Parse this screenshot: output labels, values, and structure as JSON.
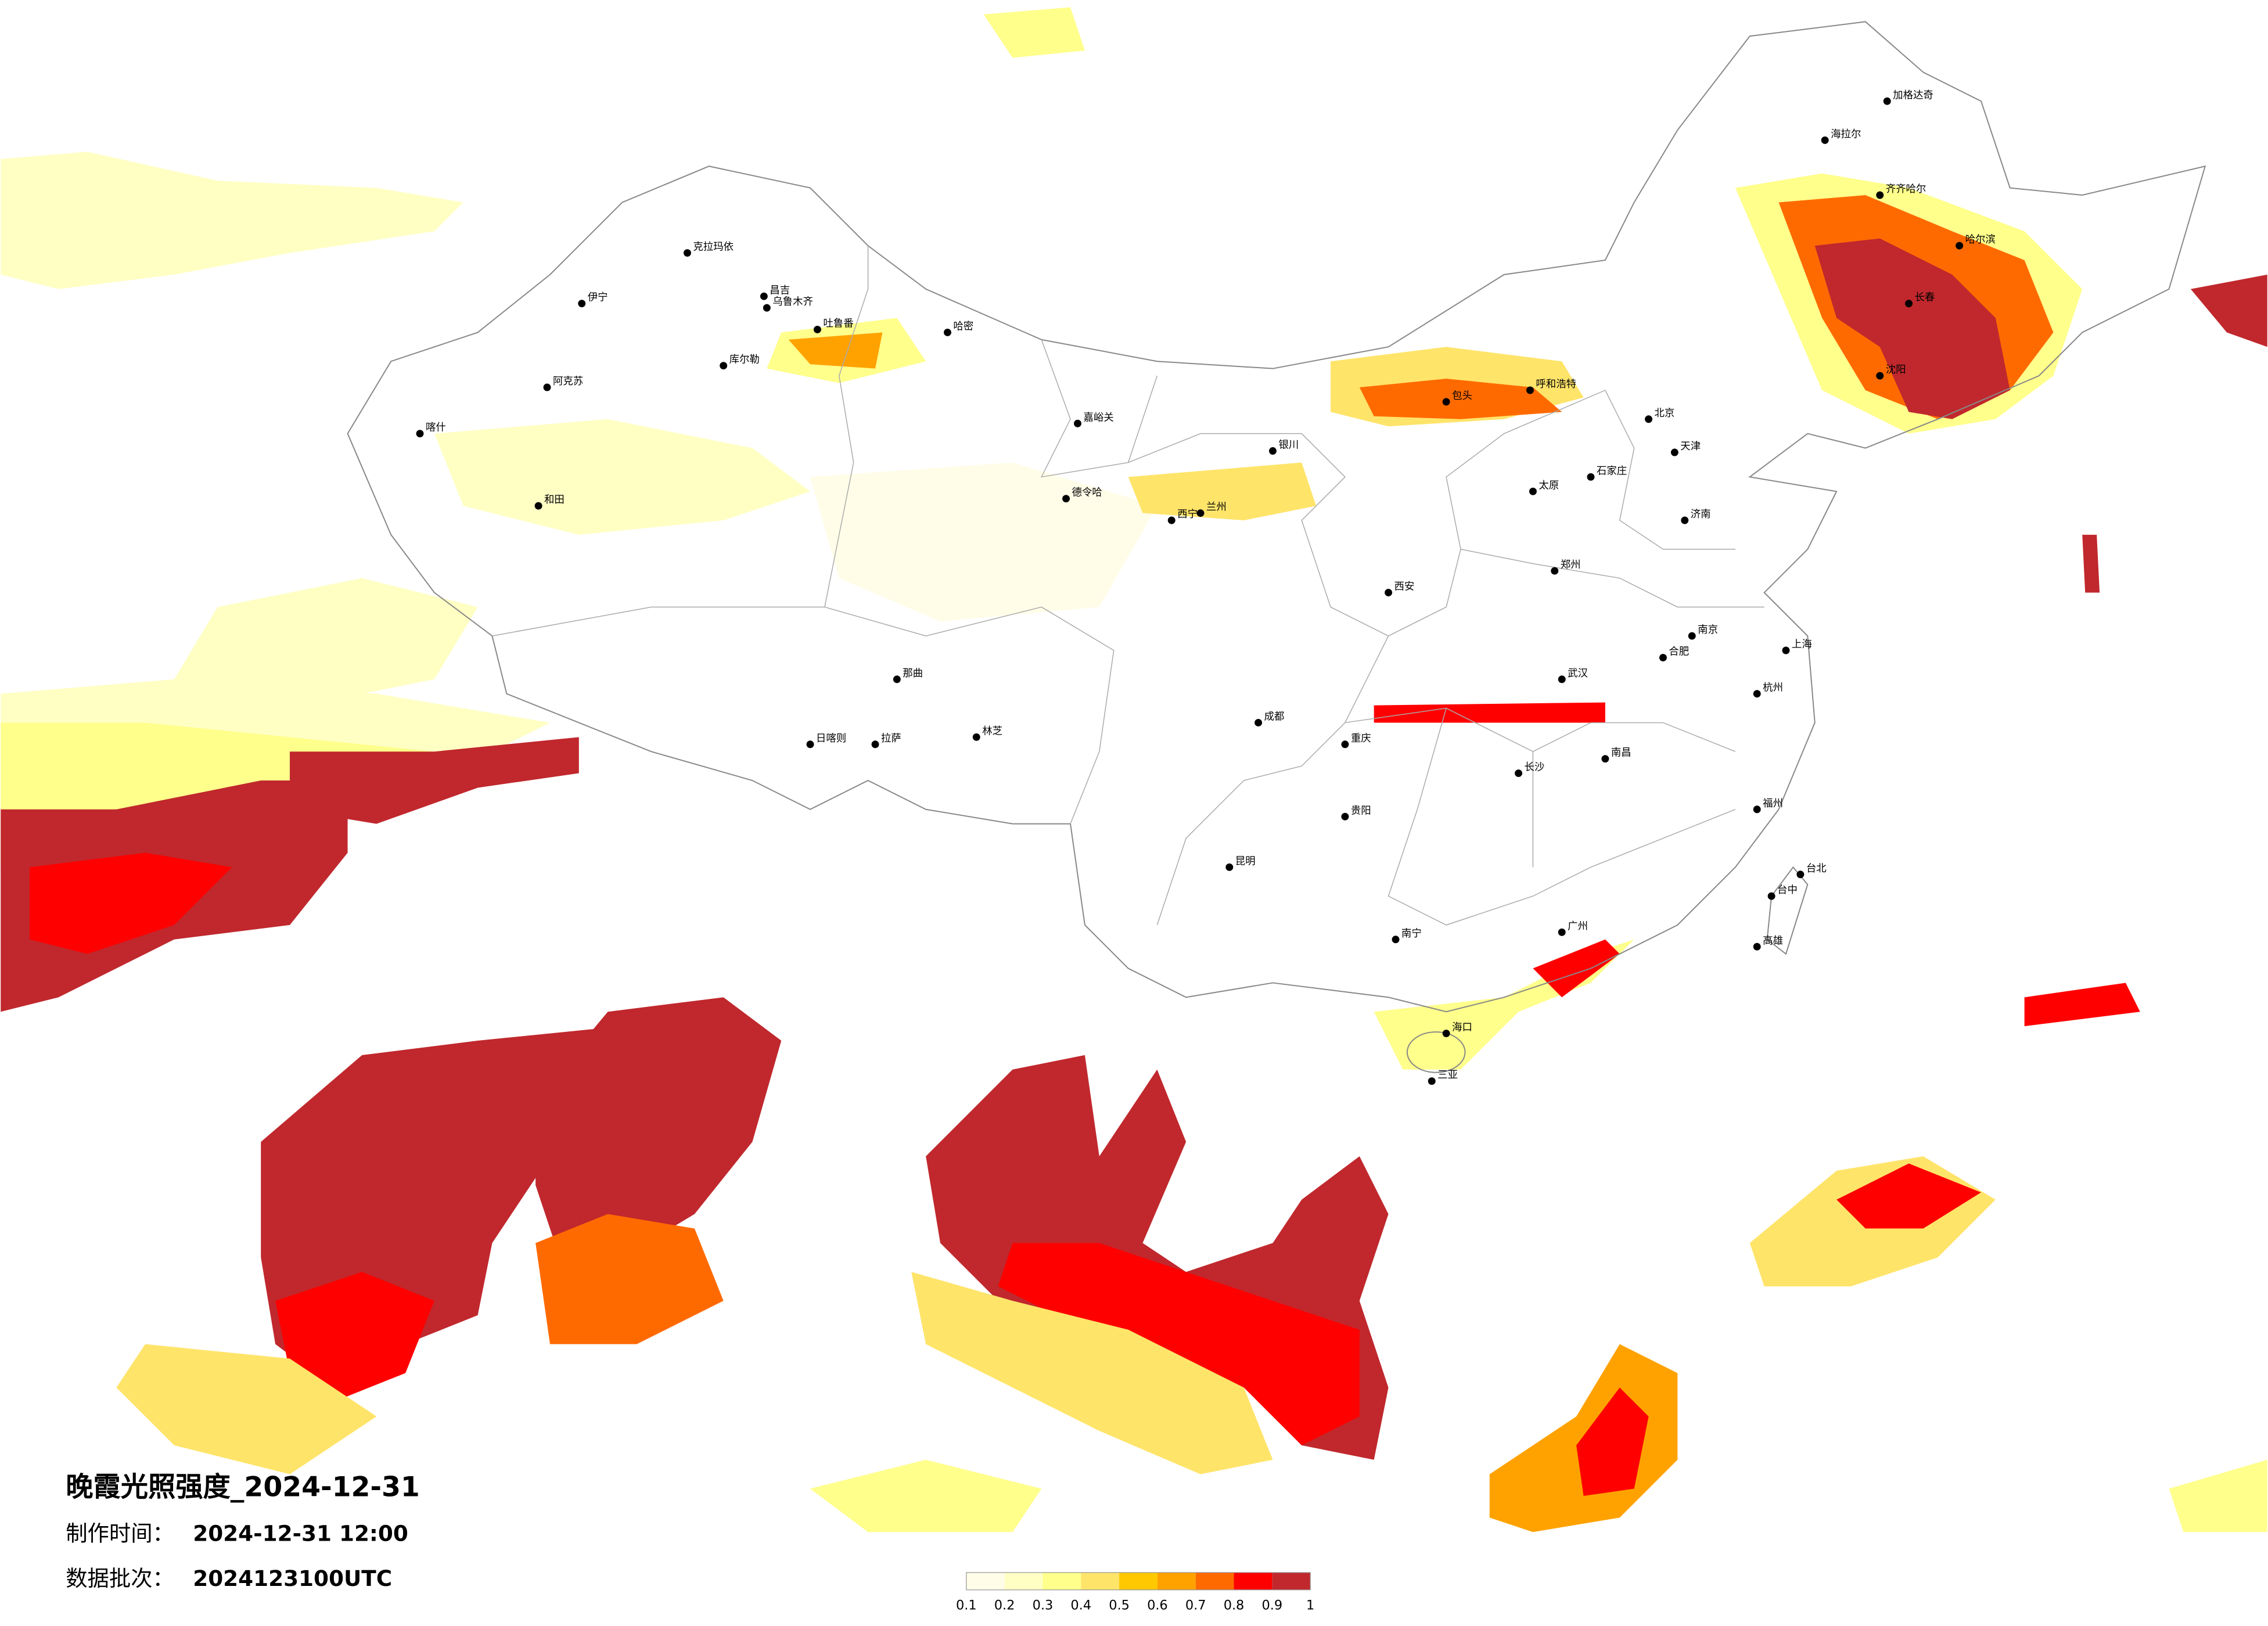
{
  "title": "晚霞光照强度_2024-12-31",
  "info": [
    {
      "label": "制作时间：",
      "value": "2024-12-31 12:00"
    },
    {
      "label": "数据批次：",
      "value": "2024123100UTC"
    }
  ],
  "legend": {
    "ticks": [
      0.1,
      0.2,
      0.3,
      0.4,
      0.5,
      0.6,
      0.7,
      0.8,
      0.9,
      1
    ],
    "colors": [
      "#fffde8",
      "#ffffc4",
      "#ffff8c",
      "#ffe46a",
      "#ffc800",
      "#ffa200",
      "#ff6a00",
      "#ff0000",
      "#c0282d"
    ]
  },
  "cities": [
    "克拉玛依",
    "伊宁",
    "昌吉",
    "乌鲁木齐",
    "吐鲁番",
    "哈密",
    "阿克苏",
    "喀什",
    "和田",
    "库尔勒",
    "嘉峪关",
    "德令哈",
    "那曲",
    "拉萨",
    "日喀则",
    "林芝",
    "海拉尔",
    "加格达奇",
    "齐齐哈尔",
    "哈尔滨",
    "长春",
    "沈阳",
    "呼和浩特",
    "包头",
    "银川",
    "兰州",
    "西宁",
    "西安",
    "北京",
    "天津",
    "石家庄",
    "太原",
    "济南",
    "郑州",
    "武汉",
    "南京",
    "上海",
    "杭州",
    "合肥",
    "长沙",
    "南昌",
    "福州",
    "广州",
    "南宁",
    "贵阳",
    "昆明",
    "成都",
    "重庆",
    "海口",
    "三亚",
    "台北",
    "台中",
    "高雄"
  ]
}
